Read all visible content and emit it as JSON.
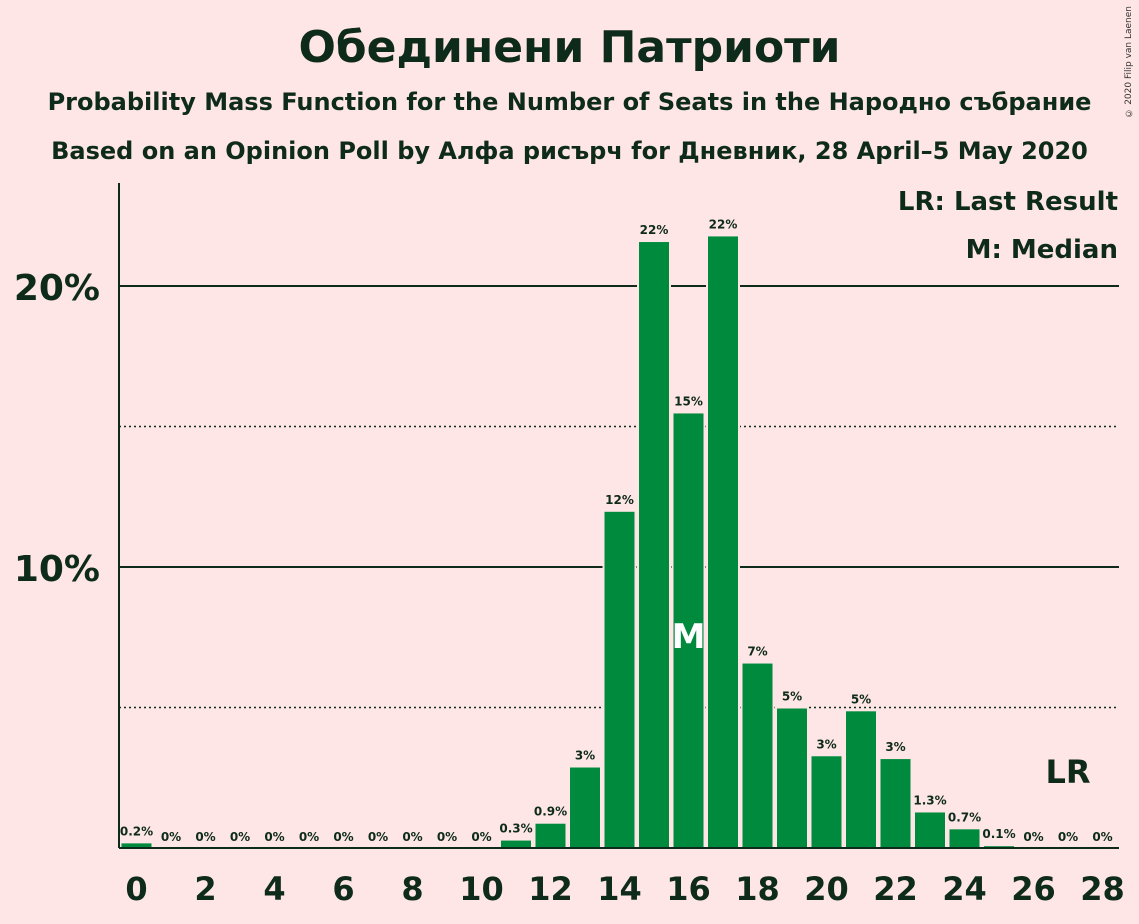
{
  "title": "Обединени Патриоти",
  "subtitle": "Probability Mass Function for the Number of Seats in the Народно събрание",
  "subtitle2": "Based on an Opinion Poll by Алфа рисърч for Дневник, 28 April–5 May 2020",
  "copyright": "© 2020 Filip van Laenen",
  "legend": {
    "lr": "LR: Last Result",
    "m": "M: Median"
  },
  "colors": {
    "background": "#fde6e5",
    "bar": "#008a3d",
    "text": "#0e2a1a"
  },
  "chart_data": {
    "type": "bar",
    "x": [
      0,
      1,
      2,
      3,
      4,
      5,
      6,
      7,
      8,
      9,
      10,
      11,
      12,
      13,
      14,
      15,
      16,
      17,
      18,
      19,
      20,
      21,
      22,
      23,
      24,
      25,
      26,
      27,
      28
    ],
    "values": [
      0.2,
      0,
      0,
      0,
      0,
      0,
      0,
      0,
      0,
      0,
      0,
      0.3,
      0.9,
      2.9,
      12.0,
      21.6,
      15.5,
      21.8,
      6.6,
      5.0,
      3.3,
      4.9,
      3.2,
      1.3,
      0.7,
      0.1,
      0,
      0,
      0
    ],
    "labels": [
      "0.2%",
      "0%",
      "0%",
      "0%",
      "0%",
      "0%",
      "0%",
      "0%",
      "0%",
      "0%",
      "0%",
      "0.3%",
      "0.9%",
      "3%",
      "12%",
      "22%",
      "15%",
      "22%",
      "7%",
      "5%",
      "3%",
      "5%",
      "3%",
      "1.3%",
      "0.7%",
      "0.1%",
      "0%",
      "0%",
      "0%"
    ],
    "xticks": [
      "0",
      "2",
      "4",
      "6",
      "8",
      "10",
      "12",
      "14",
      "16",
      "18",
      "20",
      "22",
      "24",
      "26",
      "28"
    ],
    "yticks": [
      "10%",
      "20%"
    ],
    "ylim": [
      0,
      23.6
    ],
    "solid_gridlines": [
      10,
      20
    ],
    "dotted_gridlines": [
      5,
      15
    ],
    "median": 16,
    "median_label": "M",
    "last_result": 27,
    "last_result_label": "LR",
    "legend_position": "top-right"
  }
}
